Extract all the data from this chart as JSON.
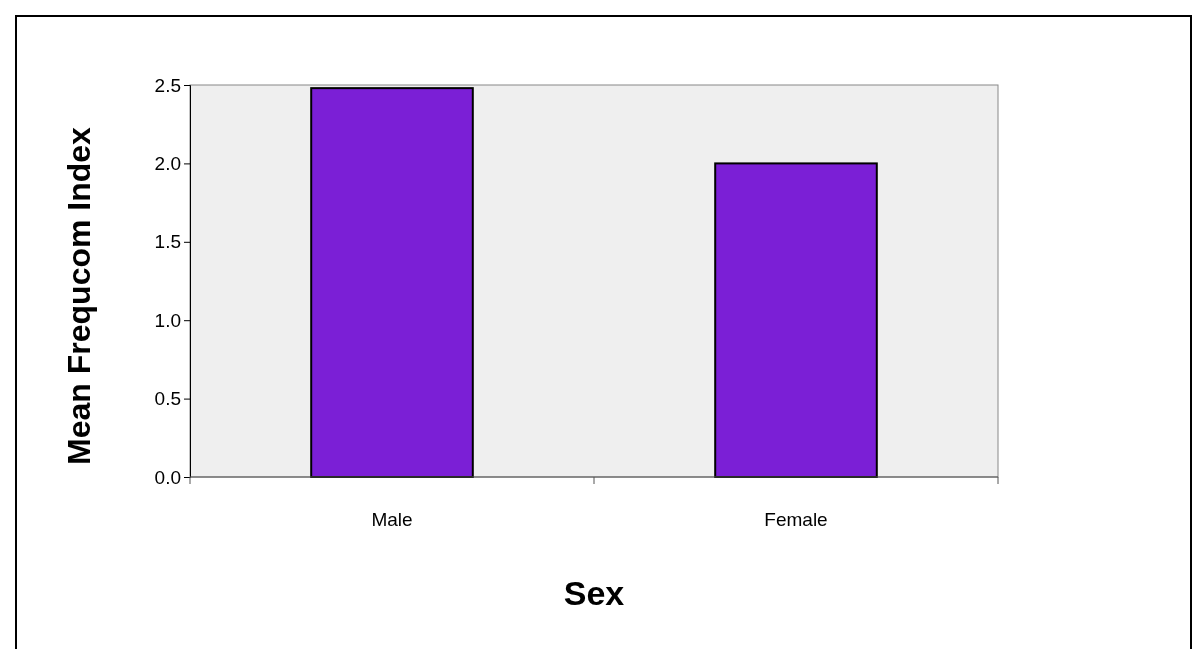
{
  "chart_data": {
    "type": "bar",
    "xlabel": "Sex",
    "ylabel": "Mean Frequcom Index",
    "categories": [
      "Male",
      "Female"
    ],
    "values": [
      2.48,
      2.0
    ],
    "color": "#7b1fd6",
    "ylim": [
      0,
      2.5
    ],
    "yticks": [
      {
        "value": 0,
        "label": "0.0"
      },
      {
        "value": 0.5,
        "label": "0.5"
      },
      {
        "value": 1,
        "label": "1.0"
      },
      {
        "value": 1.5,
        "label": "1.5"
      },
      {
        "value": 2,
        "label": "2.0"
      },
      {
        "value": 2.5,
        "label": "2.5"
      }
    ],
    "grid": false
  }
}
